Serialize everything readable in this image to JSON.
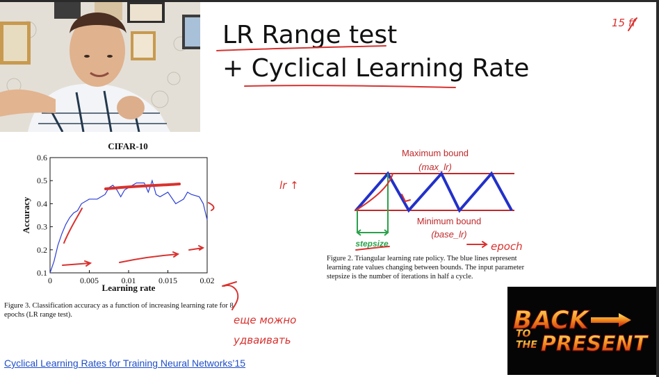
{
  "slide": {
    "title_line1": "LR Range test",
    "title_line2": "+ Cyclical Learning Rate",
    "source_link": "Cyclical Learning Rates for Training Neural Networks’15"
  },
  "chart_data": {
    "type": "line",
    "title": "CIFAR-10",
    "xlabel": "Learning rate",
    "ylabel": "Accuracy",
    "xlim": [
      0,
      0.02
    ],
    "ylim": [
      0.1,
      0.6
    ],
    "x_ticks": [
      "0",
      "0.005",
      "0.01",
      "0.015",
      "0.02"
    ],
    "y_ticks": [
      "0.1",
      "0.2",
      "0.3",
      "0.4",
      "0.5",
      "0.6"
    ],
    "grid": false,
    "series": [
      {
        "color": "#2b3fd6",
        "x": [
          0.0,
          0.0005,
          0.001,
          0.0015,
          0.002,
          0.0025,
          0.003,
          0.0035,
          0.004,
          0.005,
          0.006,
          0.007,
          0.0075,
          0.008,
          0.0085,
          0.009,
          0.0095,
          0.01,
          0.011,
          0.012,
          0.0125,
          0.013,
          0.0135,
          0.014,
          0.015,
          0.016,
          0.017,
          0.0175,
          0.018,
          0.019,
          0.0195,
          0.02
        ],
        "y": [
          0.1,
          0.15,
          0.22,
          0.27,
          0.31,
          0.34,
          0.36,
          0.37,
          0.4,
          0.42,
          0.42,
          0.44,
          0.47,
          0.48,
          0.46,
          0.43,
          0.46,
          0.47,
          0.49,
          0.49,
          0.45,
          0.5,
          0.44,
          0.43,
          0.45,
          0.4,
          0.42,
          0.45,
          0.44,
          0.43,
          0.4,
          0.33
        ]
      }
    ]
  },
  "captions": {
    "fig3": "Figure 3. Classification accuracy as a function of increasing learning rate for 8 epochs (LR range test).",
    "fig2": "Figure 2. Triangular learning rate policy. The blue lines represent learning rate values changing between bounds. The input parameter stepsize is the number of iterations in half a cycle."
  },
  "diagram": {
    "max_label": "Maximum bound",
    "max_sub": "(max_lr)",
    "min_label": "Minimum bound",
    "min_sub": "(base_lr)",
    "stepsize_label": "stepsize"
  },
  "annotations": {
    "page_num": "15 ff",
    "lr_up": "lr ↑",
    "epoch": "epoch",
    "note_line1": "еще можно",
    "note_line2": "удваивать"
  },
  "logo": {
    "line1": "BACK",
    "line2a": "TO",
    "line2b": "THE",
    "line3": "PRESENT"
  },
  "colors": {
    "annotation": "#d8322f",
    "series": "#2b3fd6",
    "bounds": "#c0282a",
    "step": "#2aa14a",
    "link": "#1f4ec8"
  }
}
